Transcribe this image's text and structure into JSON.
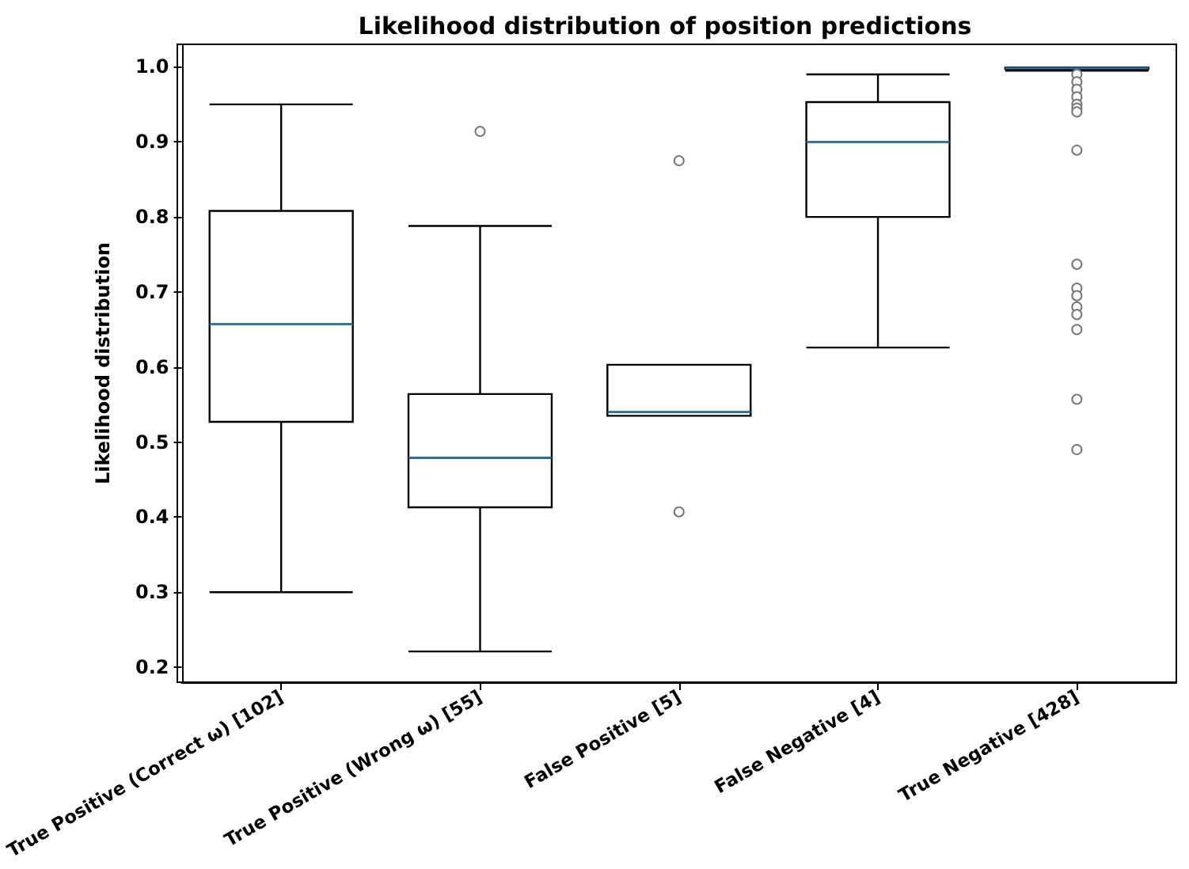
{
  "chart_data": {
    "type": "box",
    "title": "Likelihood distribution of position predictions",
    "ylabel": "Likelihood distribution",
    "categories": [
      "True Positive (Correct ω) [102]",
      "True Positive (Wrong ω) [55]",
      "False Positive [5]",
      "False Negative [4]",
      "True Negative [428]"
    ],
    "boxes": [
      {
        "low": 0.3,
        "q1": 0.527,
        "median": 0.657,
        "q3": 0.808,
        "high": 0.95
      },
      {
        "low": 0.221,
        "q1": 0.413,
        "median": 0.479,
        "q3": 0.564,
        "high": 0.788,
        "outliers": [
          0.914
        ]
      },
      {
        "low": 0.535,
        "q1": 0.535,
        "median": 0.54,
        "q3": 0.603,
        "high": 0.603,
        "outliers": [
          0.875,
          0.407
        ]
      },
      {
        "low": 0.626,
        "q1": 0.8,
        "median": 0.9,
        "q3": 0.953,
        "high": 0.99
      },
      {
        "low": 0.995,
        "q1": 0.997,
        "median": 0.998,
        "q3": 0.999,
        "high": 0.999,
        "outliers": [
          0.99,
          0.98,
          0.97,
          0.96,
          0.95,
          0.945,
          0.94,
          0.889,
          0.737,
          0.705,
          0.695,
          0.68,
          0.67,
          0.65,
          0.557,
          0.49
        ]
      }
    ],
    "color": "#000000",
    "ylim": [
      0.18,
      1.03
    ],
    "yticks": [
      0.2,
      0.3,
      0.4,
      0.5,
      0.6,
      0.7,
      0.8,
      0.9,
      {
        "value": 1,
        "label": "1.0"
      }
    ],
    "grid": false
  }
}
